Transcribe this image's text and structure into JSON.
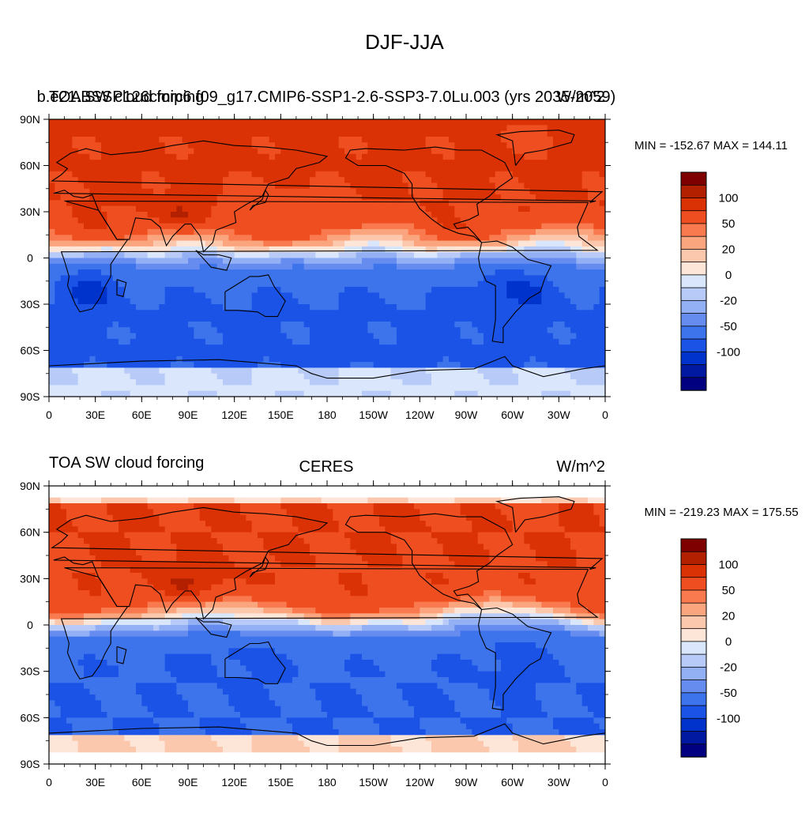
{
  "page_title": "DJF-JJA",
  "chart_data": [
    {
      "type": "heatmap",
      "left_title": "TOA SW cloud forcing",
      "center_title": "b.e21.BSSP126cmip6.f09_g17.CMIP6-SSP1-2.6-SSP3-7.0Lu.003 (yrs 2035-2059)",
      "right_title": "W/m^2",
      "stats": "MIN = -152.67 MAX = 144.11",
      "x_ticks": [
        "0",
        "30E",
        "60E",
        "90E",
        "120E",
        "150E",
        "180",
        "150W",
        "120W",
        "90W",
        "60W",
        "30W",
        "0"
      ],
      "y_ticks": [
        "90N",
        "60N",
        "30N",
        "0",
        "30S",
        "60S",
        "90S"
      ],
      "colorbar": {
        "levels": [
          -140,
          -120,
          -100,
          -80,
          -50,
          -35,
          -20,
          -10,
          0,
          10,
          20,
          35,
          50,
          80,
          100,
          120,
          140
        ],
        "tick_labels": [
          "100",
          "50",
          "20",
          "0",
          "-20",
          "-50",
          "-100"
        ],
        "colors": [
          "#000080",
          "#0019a0",
          "#0033cc",
          "#1a53e6",
          "#3d74ec",
          "#668cf0",
          "#94b0f5",
          "#b8cbf8",
          "#dae6fb",
          "#fde5d8",
          "#fcc8ad",
          "#fba57f",
          "#f87a4e",
          "#ef4e20",
          "#db3205",
          "#b22000",
          "#7f0000"
        ]
      }
    },
    {
      "type": "heatmap",
      "left_title": "TOA SW cloud forcing",
      "center_title": "CERES",
      "right_title": "W/m^2",
      "stats": "MIN = -219.23 MAX = 175.55",
      "x_ticks": [
        "0",
        "30E",
        "60E",
        "90E",
        "120E",
        "150E",
        "180",
        "150W",
        "120W",
        "90W",
        "60W",
        "30W",
        "0"
      ],
      "y_ticks": [
        "90N",
        "60N",
        "30N",
        "0",
        "30S",
        "60S",
        "90S"
      ],
      "colorbar": {
        "levels": [
          -140,
          -120,
          -100,
          -80,
          -50,
          -35,
          -20,
          -10,
          0,
          10,
          20,
          35,
          50,
          80,
          100,
          120,
          140
        ],
        "tick_labels": [
          "100",
          "50",
          "20",
          "0",
          "-20",
          "-50",
          "-100"
        ],
        "colors": [
          "#000080",
          "#0019a0",
          "#0033cc",
          "#1a53e6",
          "#3d74ec",
          "#668cf0",
          "#94b0f5",
          "#b8cbf8",
          "#dae6fb",
          "#fde5d8",
          "#fcc8ad",
          "#fba57f",
          "#f87a4e",
          "#ef4e20",
          "#db3205",
          "#b22000",
          "#7f0000"
        ]
      }
    }
  ]
}
